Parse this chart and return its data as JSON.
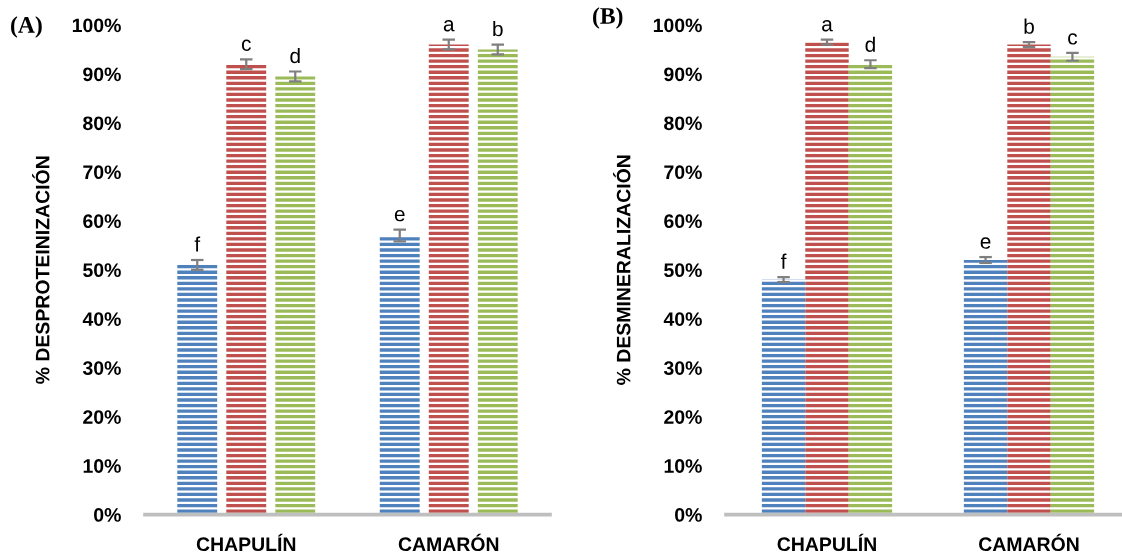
{
  "chart_data": [
    {
      "type": "bar",
      "title": "(A)",
      "ylabel": "% DESPROTEINIZACIÓN",
      "categories": [
        "CHAPULÍN",
        "CAMARÓN"
      ],
      "series": [
        {
          "color": "#4f81bd",
          "values": [
            51,
            57
          ],
          "errors": [
            1,
            1.2
          ],
          "value_labels": [
            "f",
            "e"
          ]
        },
        {
          "color": "#c0504d",
          "values": [
            92,
            96
          ],
          "errors": [
            1,
            1
          ],
          "value_labels": [
            "c",
            "a"
          ]
        },
        {
          "color": "#9bbb59",
          "values": [
            89.5,
            95
          ],
          "errors": [
            1,
            1
          ],
          "value_labels": [
            "d",
            "b"
          ]
        }
      ],
      "ylim": [
        0,
        100
      ],
      "yticks": [
        {
          "value": 0,
          "label": "0%"
        },
        {
          "value": 10,
          "label": "10%"
        },
        {
          "value": 20,
          "label": "20%"
        },
        {
          "value": 30,
          "label": "30%"
        },
        {
          "value": 40,
          "label": "40%"
        },
        {
          "value": 50,
          "label": "50%"
        },
        {
          "value": 60,
          "label": "60%"
        },
        {
          "value": 70,
          "label": "70%"
        },
        {
          "value": 80,
          "label": "80%"
        },
        {
          "value": 90,
          "label": "90%"
        },
        {
          "value": 100,
          "label": "100%"
        }
      ]
    },
    {
      "type": "bar",
      "title": "(B)",
      "ylabel": "% DESMINERALIZACIÓN",
      "categories": [
        "CHAPULÍN",
        "CAMARÓN"
      ],
      "series": [
        {
          "color": "#4f81bd",
          "values": [
            48,
            52
          ],
          "errors": [
            0.5,
            0.6
          ],
          "value_labels": [
            "f",
            "e"
          ]
        },
        {
          "color": "#c0504d",
          "values": [
            96.5,
            96
          ],
          "errors": [
            0.5,
            0.5
          ],
          "value_labels": [
            "a",
            "b"
          ]
        },
        {
          "color": "#9bbb59",
          "values": [
            92,
            93.5
          ],
          "errors": [
            0.8,
            0.8
          ],
          "value_labels": [
            "d",
            "c"
          ]
        }
      ],
      "ylim": [
        0,
        100
      ],
      "yticks": [
        {
          "value": 0,
          "label": "0%"
        },
        {
          "value": 10,
          "label": "10%"
        },
        {
          "value": 20,
          "label": "20%"
        },
        {
          "value": 30,
          "label": "30%"
        },
        {
          "value": 40,
          "label": "40%"
        },
        {
          "value": 50,
          "label": "50%"
        },
        {
          "value": 60,
          "label": "60%"
        },
        {
          "value": 70,
          "label": "70%"
        },
        {
          "value": 80,
          "label": "80%"
        },
        {
          "value": 90,
          "label": "90%"
        },
        {
          "value": 100,
          "label": "100%"
        }
      ]
    }
  ]
}
